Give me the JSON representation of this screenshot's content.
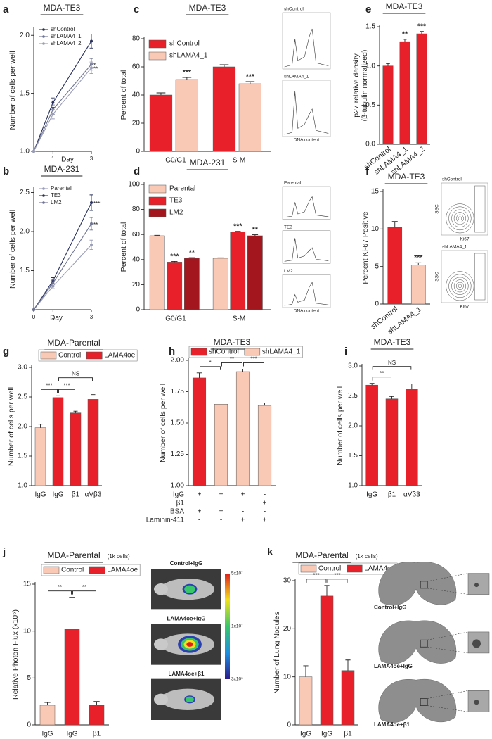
{
  "chart_data": [
    {
      "label": "a",
      "type": "line",
      "title": "MDA-TE3",
      "xlabel": "Day",
      "ylabel": "Number of cells per well",
      "x": [
        0,
        1,
        3
      ],
      "xlim": [
        0,
        3
      ],
      "xticks": [
        1,
        3
      ],
      "ylim": [
        1.0,
        2.05
      ],
      "yticks": [
        {
          "value": 1.0,
          "label": "1.0"
        },
        {
          "value": 1.5,
          "label": "1.5"
        },
        {
          "value": 2.0,
          "label": "2.0"
        }
      ],
      "series": [
        {
          "name": "shControl",
          "color": "#27305e",
          "values": [
            1.0,
            1.42,
            1.95
          ],
          "errors": [
            0,
            0.04,
            0.06
          ]
        },
        {
          "name": "shLAMA4_1",
          "color": "#6e7391",
          "values": [
            1.0,
            1.36,
            1.75
          ],
          "errors": [
            0,
            0.04,
            0.05
          ]
        },
        {
          "name": "shLAMA4_2",
          "color": "#9a9db8",
          "values": [
            1.0,
            1.32,
            1.72
          ],
          "errors": [
            0,
            0.04,
            0.05
          ]
        }
      ],
      "annotations": [
        "*",
        "**"
      ]
    },
    {
      "label": "b",
      "type": "line",
      "title": "MDA-231",
      "xlabel": "Day",
      "ylabel": "Number of cells per well",
      "x": [
        0,
        1,
        3
      ],
      "xlim": [
        0,
        3
      ],
      "xticks": [
        0,
        1,
        3
      ],
      "ylim": [
        1.0,
        2.55
      ],
      "yticks": [
        {
          "value": 1.5,
          "label": "1.5"
        },
        {
          "value": 2.0,
          "label": "2.0"
        },
        {
          "value": 2.5,
          "label": "2.5"
        }
      ],
      "series": [
        {
          "name": "Parental",
          "color": "#9a9db8",
          "values": [
            1.0,
            1.3,
            1.83
          ],
          "errors": [
            0,
            0.03,
            0.06
          ]
        },
        {
          "name": "TE3",
          "color": "#27305e",
          "values": [
            1.0,
            1.37,
            2.37
          ],
          "errors": [
            0,
            0.04,
            0.1
          ]
        },
        {
          "name": "LM2",
          "color": "#6e7391",
          "values": [
            1.0,
            1.34,
            2.1
          ],
          "errors": [
            0,
            0.04,
            0.08
          ]
        }
      ],
      "annotations": [
        "***",
        "**"
      ]
    },
    {
      "label": "c",
      "type": "bar",
      "title": "MDA-TE3",
      "ylabel": "Percent of total",
      "categories": [
        "G0/G1",
        "S-M"
      ],
      "ylim": [
        0,
        80
      ],
      "yticks": [
        0,
        20,
        40,
        60,
        80
      ],
      "series": [
        {
          "name": "shControl",
          "color": "#e8202a",
          "values": [
            40,
            60
          ],
          "errors": [
            1.5,
            1.5
          ]
        },
        {
          "name": "shLAMA4_1",
          "color": "#f9c9b5",
          "values": [
            51,
            48
          ],
          "errors": [
            1.5,
            1.5
          ]
        }
      ],
      "annotations": [
        "***",
        "***"
      ],
      "insets": {
        "labels": [
          "shControl",
          "shLAMA4_1"
        ],
        "xlabel": "DNA content"
      }
    },
    {
      "label": "d",
      "type": "bar",
      "title": "MDA-231",
      "ylabel": "Percent of total",
      "categories": [
        "G0/G1",
        "S-M"
      ],
      "ylim": [
        0,
        100
      ],
      "yticks": [
        0,
        20,
        40,
        60,
        80,
        100
      ],
      "series": [
        {
          "name": "Parental",
          "color": "#f9c9b5",
          "values": [
            59,
            41
          ],
          "errors": [
            0.4,
            0.4
          ]
        },
        {
          "name": "TE3",
          "color": "#e8202a",
          "values": [
            38,
            62
          ],
          "errors": [
            0.5,
            0.5
          ]
        },
        {
          "name": "LM2",
          "color": "#a3161d",
          "values": [
            41,
            59
          ],
          "errors": [
            0.5,
            0.8
          ]
        }
      ],
      "annotations": [
        "***",
        "**",
        "***",
        "**"
      ],
      "insets": {
        "labels": [
          "Parental",
          "TE3",
          "LM2"
        ],
        "xlabel": "DNA content"
      }
    },
    {
      "label": "e",
      "type": "bar",
      "title": "MDA-TE3",
      "ylabel": [
        "p27 relative density",
        "(β-tubulin normalized)"
      ],
      "categories": [
        "shControl",
        "shLAMA4_1",
        "shLAMA4_2"
      ],
      "values": [
        1.0,
        1.31,
        1.41
      ],
      "errors": [
        0.03,
        0.03,
        0.03
      ],
      "colors": [
        "#e8202a",
        "#e8202a",
        "#e8202a"
      ],
      "ylim": [
        0,
        1.5
      ],
      "yticks": [
        {
          "value": 0,
          "label": "0.0"
        },
        {
          "value": 0.5,
          "label": "0.5"
        },
        {
          "value": 1.0,
          "label": "1.0"
        },
        {
          "value": 1.5,
          "label": "1.5"
        }
      ],
      "annotations": [
        "**",
        "***"
      ]
    },
    {
      "label": "f",
      "type": "bar",
      "title": "MDA-TE3",
      "ylabel": "Percent Ki-67 Positive",
      "categories": [
        "shControl",
        "shLAMA4_1"
      ],
      "values": [
        10.2,
        5.2
      ],
      "errors": [
        0.8,
        0.3
      ],
      "colors": [
        "#e8202a",
        "#f9c9b5"
      ],
      "ylim": [
        0,
        15
      ],
      "yticks": [
        0,
        5,
        10,
        15
      ],
      "annotations": [
        "***"
      ],
      "insets": {
        "labels": [
          "shControl",
          "shLAMA4_1"
        ],
        "xlabel": "Ki67",
        "ylabel": "SSC"
      }
    },
    {
      "label": "g",
      "type": "bar",
      "title": "MDA-Parental",
      "ylabel": "Number of cells per well",
      "categories": [
        "IgG",
        "IgG",
        "β1",
        "αVβ3"
      ],
      "values": [
        1.98,
        2.49,
        2.23,
        2.46
      ],
      "errors": [
        0.06,
        0.03,
        0.03,
        0.08
      ],
      "colors": [
        "#f9c9b5",
        "#e8202a",
        "#e8202a",
        "#e8202a"
      ],
      "legend": [
        {
          "name": "Control",
          "color": "#f9c9b5"
        },
        {
          "name": "LAMA4oe",
          "color": "#e8202a"
        }
      ],
      "ylim": [
        1.0,
        3.0
      ],
      "yticks": [
        {
          "value": 1.0,
          "label": "1.0"
        },
        {
          "value": 1.5,
          "label": "1.5"
        },
        {
          "value": 2.0,
          "label": "2.0"
        },
        {
          "value": 2.5,
          "label": "2.5"
        },
        {
          "value": 3.0,
          "label": "3.0"
        }
      ],
      "annotations": [
        "***",
        "***",
        "NS"
      ]
    },
    {
      "label": "h",
      "type": "bar",
      "title": "MDA-TE3",
      "ylabel": "Number of cells per well",
      "values": [
        1.86,
        1.65,
        1.91,
        1.64
      ],
      "errors": [
        0.04,
        0.05,
        0.02,
        0.02
      ],
      "colors": [
        "#e8202a",
        "#f9c9b5",
        "#f9c9b5",
        "#f9c9b5"
      ],
      "legend": [
        {
          "name": "shControl",
          "color": "#e8202a"
        },
        {
          "name": "shLAMA4_1",
          "color": "#f9c9b5"
        }
      ],
      "ylim": [
        1.0,
        2.0
      ],
      "yticks": [
        {
          "value": 1.0,
          "label": "1.00"
        },
        {
          "value": 1.25,
          "label": "1.25"
        },
        {
          "value": 1.5,
          "label": "1.50"
        },
        {
          "value": 1.75,
          "label": "1.75"
        },
        {
          "value": 2.0,
          "label": "2.00"
        }
      ],
      "annotations": [
        "*",
        "**",
        "***"
      ],
      "table": {
        "rows": [
          {
            "label": "IgG",
            "cells": [
              "+",
              "+",
              "+",
              "-"
            ]
          },
          {
            "label": "β1",
            "cells": [
              "-",
              "-",
              "-",
              "+"
            ]
          },
          {
            "label": "BSA",
            "cells": [
              "+",
              "+",
              "-",
              "-"
            ]
          },
          {
            "label": "Laminin-411",
            "cells": [
              "-",
              "-",
              "+",
              "+"
            ]
          }
        ]
      }
    },
    {
      "label": "i",
      "type": "bar",
      "title": "MDA-TE3",
      "ylabel": "Number of cells per well",
      "categories": [
        "IgG",
        "β1",
        "αVβ3"
      ],
      "values": [
        2.68,
        2.45,
        2.62
      ],
      "errors": [
        0.03,
        0.04,
        0.08
      ],
      "colors": [
        "#e8202a",
        "#e8202a",
        "#e8202a"
      ],
      "ylim": [
        1.0,
        3.0
      ],
      "yticks": [
        {
          "value": 1.0,
          "label": "1.0"
        },
        {
          "value": 1.5,
          "label": "1.5"
        },
        {
          "value": 2.0,
          "label": "2.0"
        },
        {
          "value": 2.5,
          "label": "2.5"
        },
        {
          "value": 3.0,
          "label": "3.0"
        }
      ],
      "annotations": [
        "**",
        "NS"
      ]
    },
    {
      "label": "j",
      "type": "bar",
      "title": "MDA-Parental",
      "subtitle": "(1k cells)",
      "ylabel": "Relative Photon Flux (x10⁶)",
      "categories": [
        "IgG",
        "IgG",
        "β1"
      ],
      "values": [
        2.1,
        10.2,
        2.1
      ],
      "errors": [
        0.3,
        3.4,
        0.4
      ],
      "colors": [
        "#f9c9b5",
        "#e8202a",
        "#e8202a"
      ],
      "legend": [
        {
          "name": "Control",
          "color": "#f9c9b5"
        },
        {
          "name": "LAMA4oe",
          "color": "#e8202a"
        }
      ],
      "ylim": [
        0,
        15
      ],
      "yticks": [
        0,
        5,
        10,
        15
      ],
      "annotations": [
        "**",
        "**"
      ],
      "images": {
        "labels": [
          "Control+IgG",
          "LAMA4oe+IgG",
          "LAMA4oe+β1"
        ],
        "colorbar": [
          "5x10⁷",
          "1x10⁷",
          "3x10⁶"
        ]
      }
    },
    {
      "label": "k",
      "type": "bar",
      "title": "MDA-Parental",
      "subtitle": "(1k cells)",
      "ylabel": "Number of Lung Nodules",
      "categories": [
        "IgG",
        "IgG",
        "β1"
      ],
      "values": [
        10,
        26.8,
        11.3
      ],
      "errors": [
        2.3,
        2.2,
        2.2
      ],
      "colors": [
        "#f9c9b5",
        "#e8202a",
        "#e8202a"
      ],
      "legend": [
        {
          "name": "Control",
          "color": "#f9c9b5"
        },
        {
          "name": "LAMA4oe",
          "color": "#e8202a"
        }
      ],
      "ylim": [
        0,
        30
      ],
      "yticks": [
        0,
        10,
        20,
        30
      ],
      "annotations": [
        "***",
        "***"
      ],
      "images": {
        "labels": [
          "Control+IgG",
          "LAMA4oe+IgG",
          "LAMA4oe+β1"
        ]
      }
    }
  ]
}
